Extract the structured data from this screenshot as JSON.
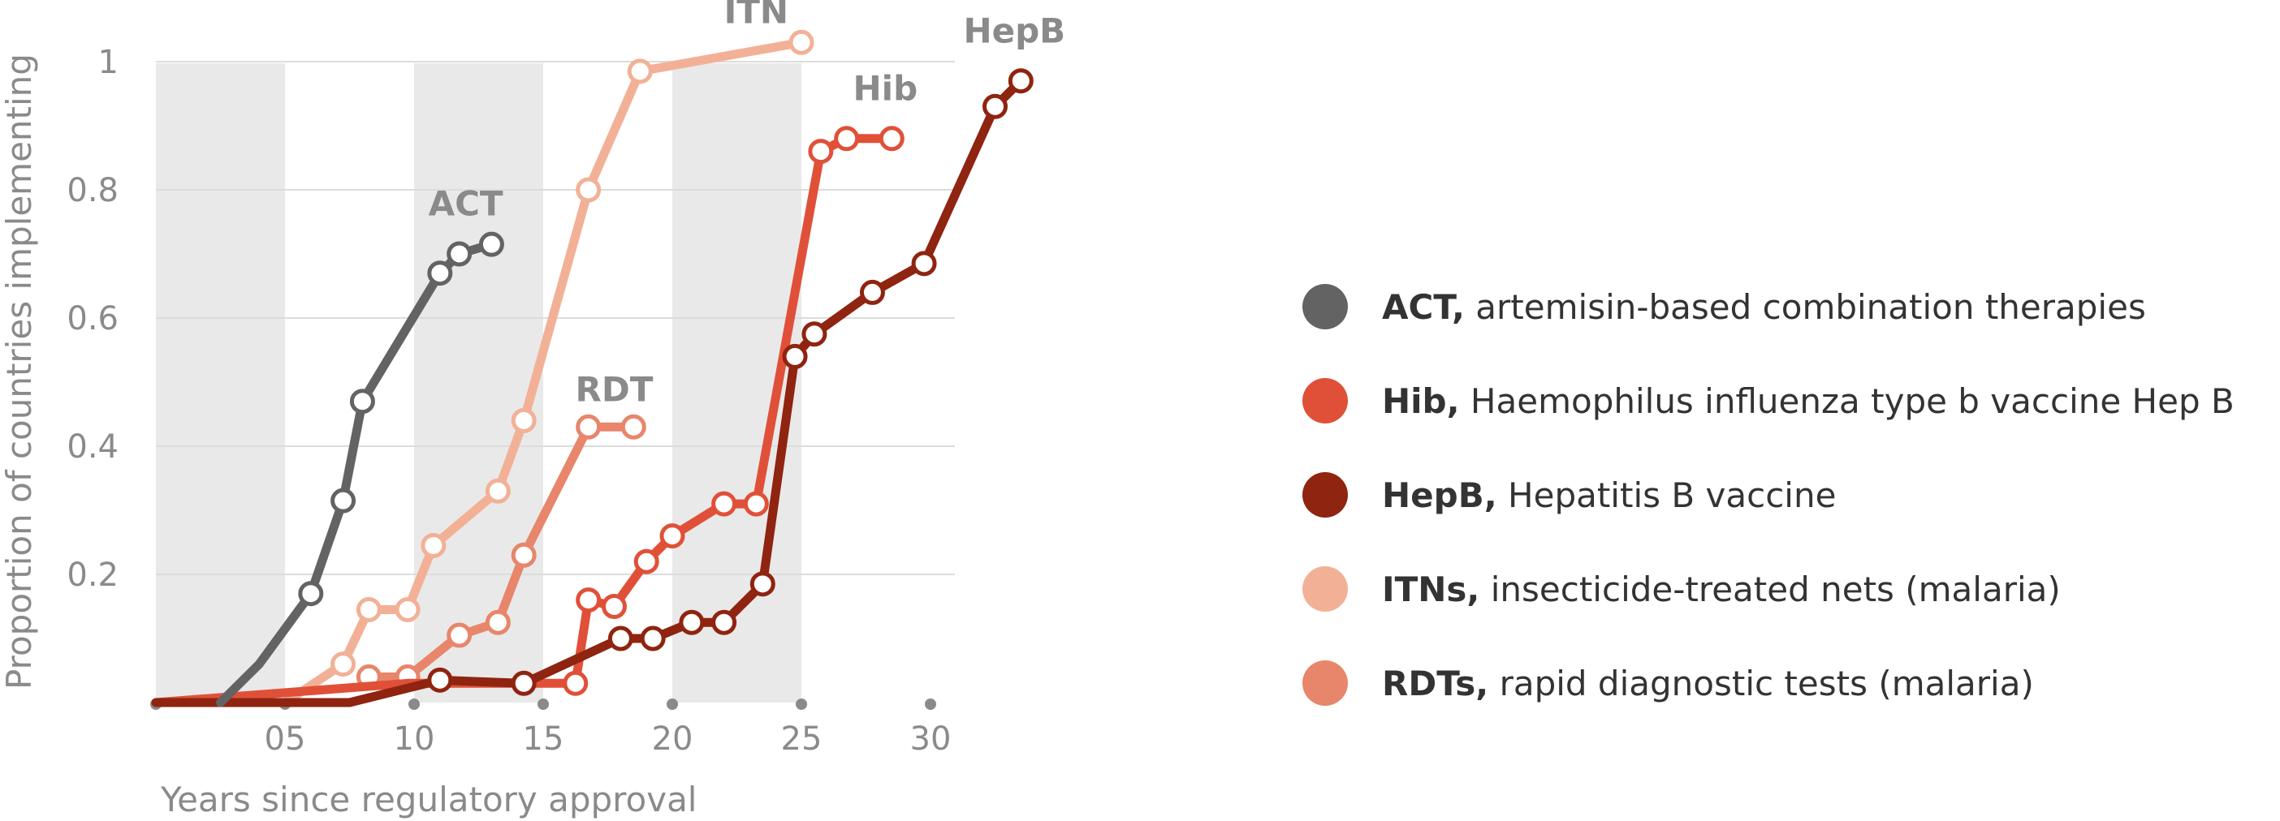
{
  "chart_data": {
    "type": "line",
    "title": "",
    "xlabel": "Years since regulatory approval",
    "ylabel": "Proportion of countries implementing",
    "xlim": [
      0,
      30
    ],
    "ylim": [
      0,
      1.03
    ],
    "x_ticks": [
      {
        "value": 5,
        "label": "05"
      },
      {
        "value": 10,
        "label": "10"
      },
      {
        "value": 15,
        "label": "15"
      },
      {
        "value": 20,
        "label": "20"
      },
      {
        "value": 25,
        "label": "25"
      },
      {
        "value": 30,
        "label": "30"
      }
    ],
    "y_ticks": [
      {
        "value": 0.2,
        "label": "0.2"
      },
      {
        "value": 0.4,
        "label": "0.4"
      },
      {
        "value": 0.6,
        "label": "0.6"
      },
      {
        "value": 0.8,
        "label": "0.8"
      },
      {
        "value": 1.0,
        "label": "1"
      }
    ],
    "x_dots": [
      0,
      5,
      10,
      15,
      20,
      25,
      30
    ],
    "shaded_bands": [
      [
        0,
        5
      ],
      [
        10,
        15
      ],
      [
        20,
        25
      ]
    ],
    "grid": true,
    "legend_position": "right",
    "series": [
      {
        "key": "ITN",
        "label": "ITN",
        "color": "#f2b196",
        "x": [
          5.0,
          7.25,
          8.25,
          9.75,
          10.75,
          13.25,
          14.25,
          16.75,
          18.75,
          25.0
        ],
        "y": [
          0.0,
          0.06,
          0.145,
          0.145,
          0.245,
          0.33,
          0.44,
          0.8,
          0.985,
          1.03
        ],
        "markers": [
          false,
          true,
          true,
          true,
          true,
          true,
          true,
          true,
          true,
          true
        ]
      },
      {
        "key": "RDT",
        "label": "RDT",
        "color": "#e8866b",
        "x": [
          8.25,
          9.75,
          11.75,
          13.25,
          14.25,
          16.75,
          18.5
        ],
        "y": [
          0.04,
          0.04,
          0.105,
          0.125,
          0.23,
          0.43,
          0.43
        ],
        "markers": [
          true,
          true,
          true,
          true,
          true,
          true,
          true
        ]
      },
      {
        "key": "Hib",
        "label": "Hib",
        "color": "#e05038",
        "x": [
          0.0,
          9.75,
          16.25,
          16.75,
          17.75,
          19.0,
          20.0,
          22.0,
          23.25,
          25.75,
          26.75,
          28.5
        ],
        "y": [
          0.0,
          0.03,
          0.03,
          0.16,
          0.15,
          0.22,
          0.26,
          0.31,
          0.31,
          0.86,
          0.88,
          0.88
        ],
        "markers": [
          false,
          false,
          true,
          true,
          true,
          true,
          true,
          true,
          true,
          true,
          true,
          true
        ]
      },
      {
        "key": "HepB",
        "label": "HepB",
        "color": "#8f2410",
        "x": [
          0.0,
          7.5,
          11.0,
          14.25,
          18.0,
          19.25,
          20.75,
          22.0,
          23.5,
          24.75,
          25.5,
          27.75,
          29.75,
          32.5,
          33.5
        ],
        "y": [
          0.0,
          0.0,
          0.035,
          0.03,
          0.1,
          0.1,
          0.125,
          0.125,
          0.185,
          0.54,
          0.575,
          0.64,
          0.685,
          0.93,
          0.97
        ],
        "markers": [
          false,
          false,
          true,
          true,
          true,
          true,
          true,
          true,
          true,
          true,
          true,
          true,
          true,
          true,
          true
        ]
      },
      {
        "key": "ACT",
        "label": "ACT",
        "color": "#636363",
        "x": [
          2.5,
          4.0,
          6.0,
          7.25,
          8.0,
          11.0,
          11.75,
          13.0
        ],
        "y": [
          0.0,
          0.06,
          0.17,
          0.315,
          0.47,
          0.67,
          0.7,
          0.715
        ],
        "markers": [
          false,
          false,
          true,
          true,
          true,
          true,
          true,
          true
        ]
      }
    ],
    "series_labels": [
      {
        "key": "ACT",
        "text": "ACT",
        "x": 12.0,
        "y": 0.76
      },
      {
        "key": "RDT",
        "text": "RDT",
        "x": 17.75,
        "y": 0.47
      },
      {
        "key": "ITN",
        "text": "ITN",
        "x": 23.25,
        "y": 1.06
      },
      {
        "key": "Hib",
        "text": "Hib",
        "x": 28.25,
        "y": 0.94
      },
      {
        "key": "HepB",
        "text": "HepB",
        "x": 33.25,
        "y": 1.03
      }
    ],
    "legend": [
      {
        "key": "ACT",
        "bold": "ACT,",
        "text": "artemisin-based combination therapies",
        "color": "#636363"
      },
      {
        "key": "Hib",
        "bold": "Hib,",
        "text": "Haemophilus influenza type b vaccine Hep B",
        "color": "#e05038"
      },
      {
        "key": "HepB",
        "bold": "HepB,",
        "text": "Hepatitis B vaccine",
        "color": "#8f2410"
      },
      {
        "key": "ITNs",
        "bold": "ITNs,",
        "text": "insecticide-treated nets (malaria)",
        "color": "#f2b196"
      },
      {
        "key": "RDTs",
        "bold": "RDTs,",
        "text": "rapid diagnostic tests (malaria)",
        "color": "#e8866b"
      }
    ]
  }
}
